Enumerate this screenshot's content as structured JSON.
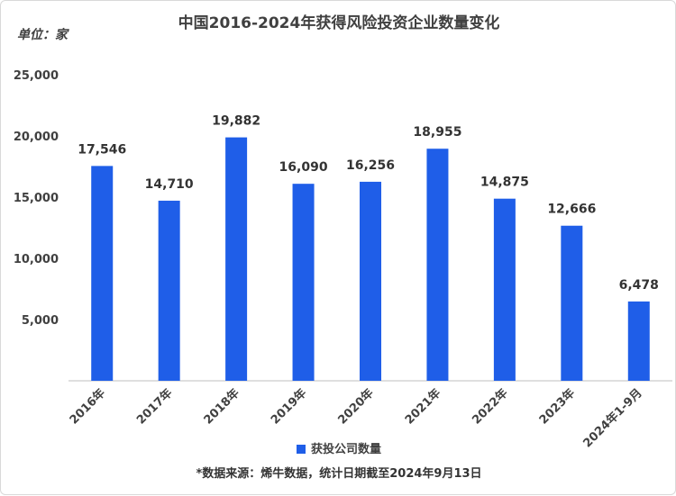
{
  "chart_data": {
    "type": "bar",
    "title": "中国2016-2024年获得风险投资企业数量变化",
    "unit_label": "单位：家",
    "categories": [
      "2016年",
      "2017年",
      "2018年",
      "2019年",
      "2020年",
      "2021年",
      "2022年",
      "2023年",
      "2024年1-9月"
    ],
    "series": [
      {
        "name": "获投公司数量",
        "values": [
          17546,
          14710,
          19882,
          16090,
          16256,
          18955,
          14875,
          12666,
          6478
        ],
        "color": "#1f5ee8"
      }
    ],
    "data_labels": [
      "17,546",
      "14,710",
      "19,882",
      "16,090",
      "16,256",
      "18,955",
      "14,875",
      "12,666",
      "6,478"
    ],
    "ylim": [
      0,
      25000
    ],
    "yticks": [
      5000,
      10000,
      15000,
      20000,
      25000
    ],
    "ytick_labels": [
      "5,000",
      "10,000",
      "15,000",
      "20,000",
      "25,000"
    ],
    "grid": false,
    "legend_position": "bottom",
    "source_note": "*数据来源：烯牛数据，统计日期截至2024年9月13日"
  }
}
